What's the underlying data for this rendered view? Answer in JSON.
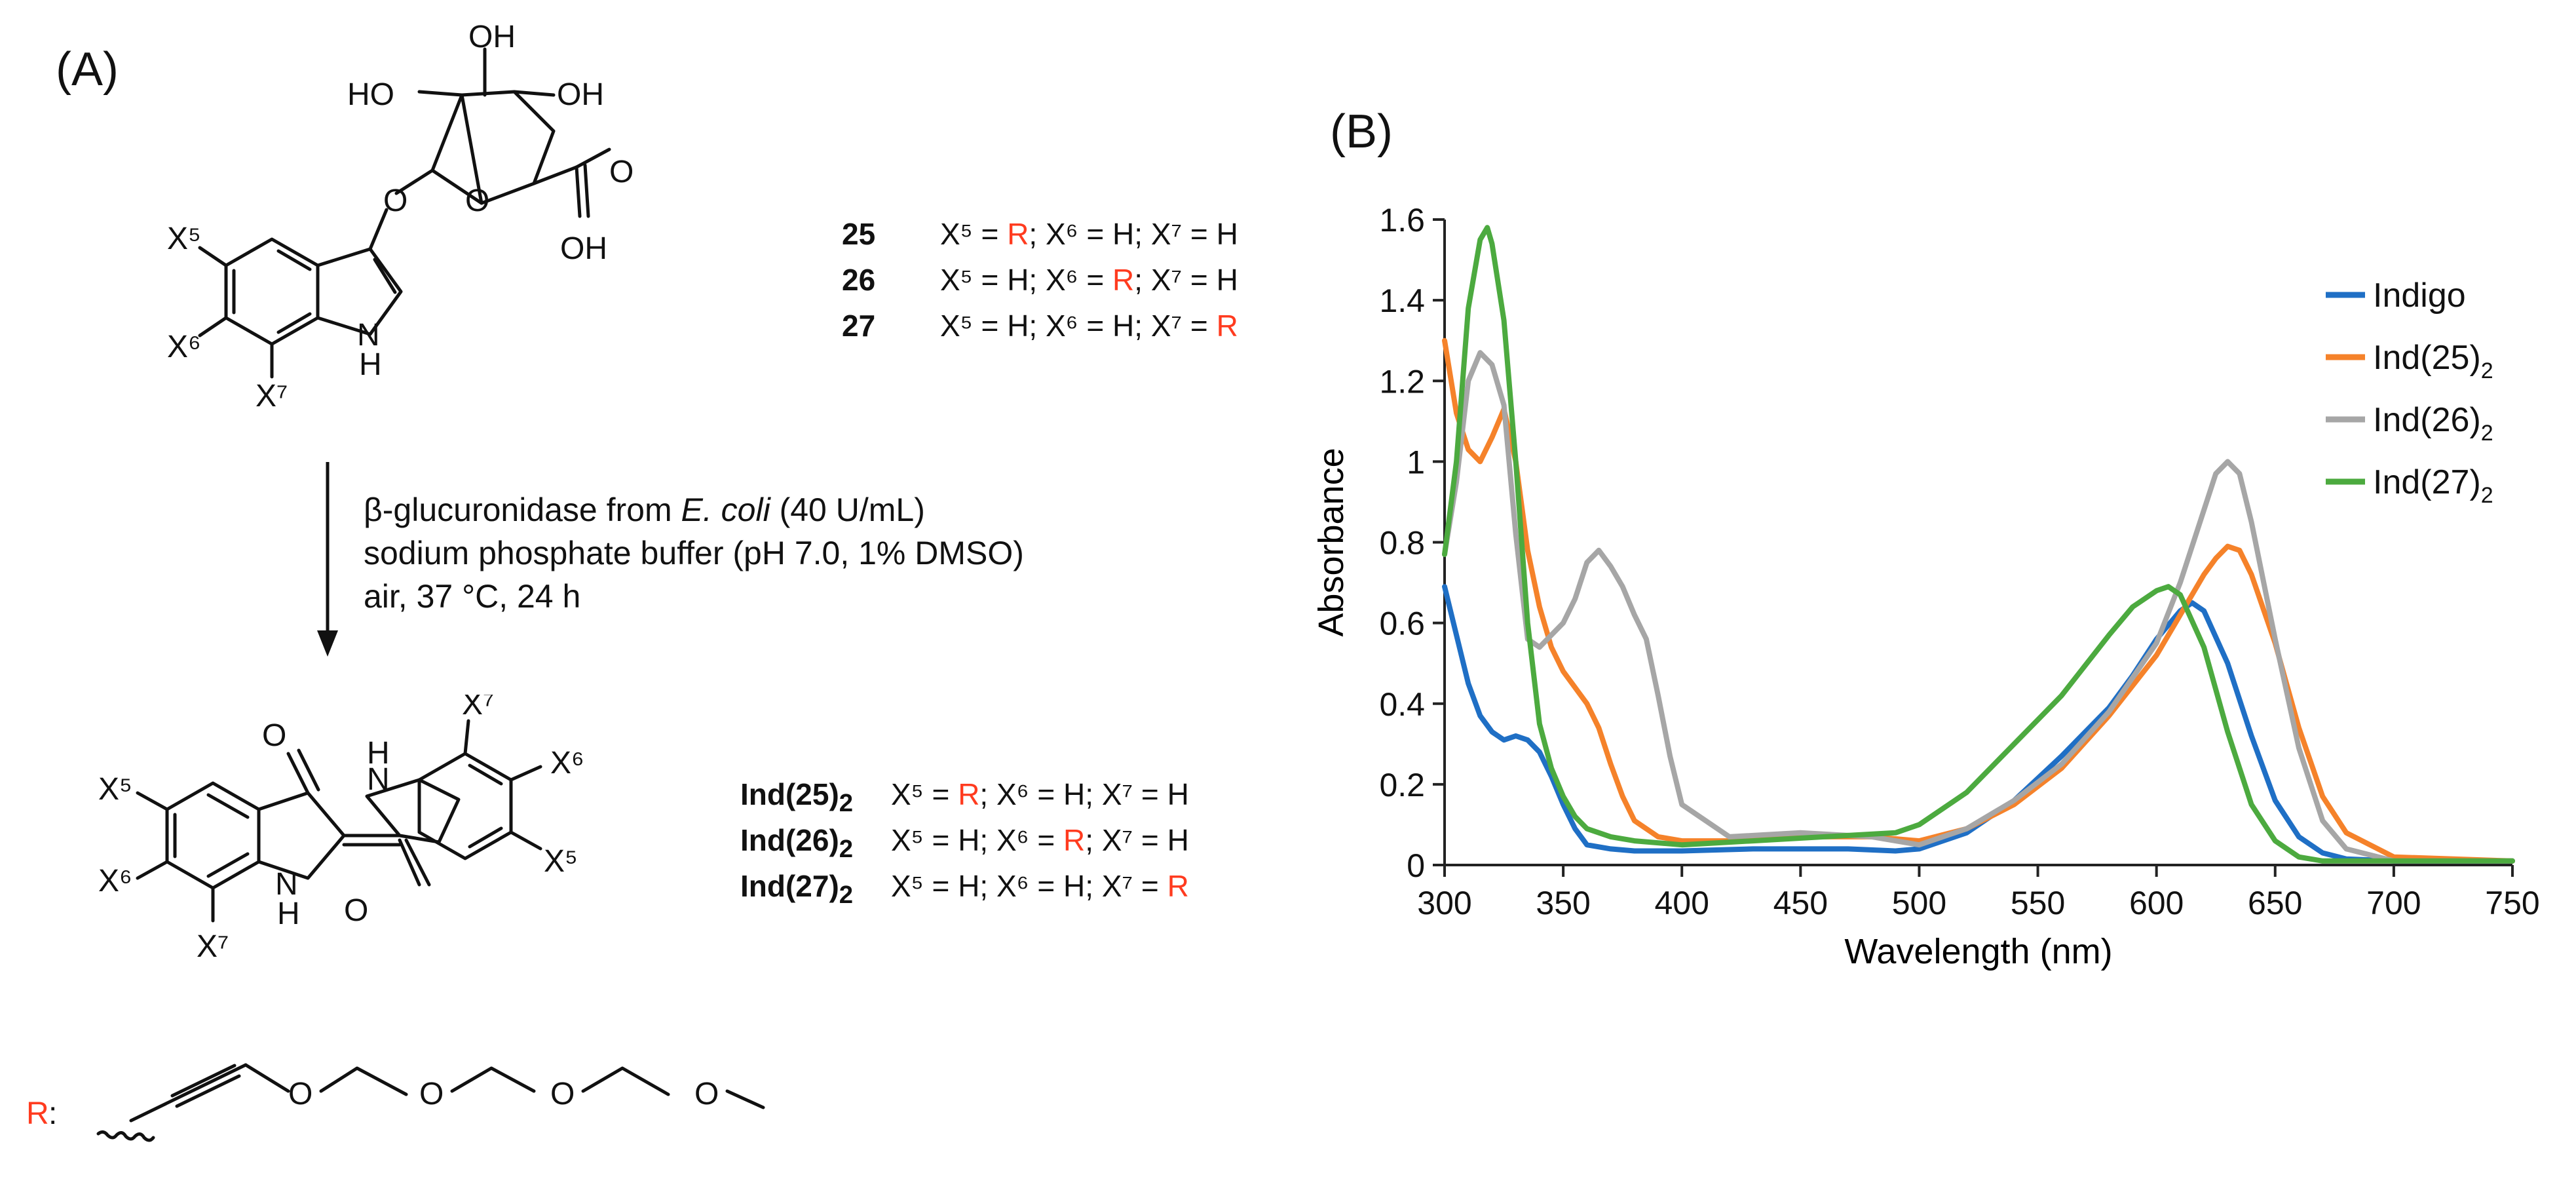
{
  "panel_a": {
    "label": "(A)",
    "substrate": {
      "oh_top": "OH",
      "ho_left": "HO",
      "oh_right": "OH",
      "oh_acid": "OH",
      "o_acid": "O",
      "o_ring": "O",
      "o_glyco": "O",
      "nh_n": "N",
      "nh_h": "H",
      "x5": "X⁵",
      "x6": "X⁶",
      "x7": "X⁷"
    },
    "substrate_variants": [
      {
        "id": "25",
        "x5": "X⁵ = ",
        "v5": "R",
        "x6": "; X⁶ = ",
        "v6": "H",
        "x7": "; X⁷ = ",
        "v7": "H"
      },
      {
        "id": "26",
        "x5": "X⁵ = ",
        "v5": "H",
        "x6": "; X⁶ = ",
        "v6": "R",
        "x7": "; X⁷ = ",
        "v7": "H"
      },
      {
        "id": "27",
        "x5": "X⁵ = ",
        "v5": "H",
        "x6": "; X⁶ = ",
        "v6": "H",
        "x7": "; X⁷ = ",
        "v7": "R"
      }
    ],
    "conditions": {
      "line1_pre": "β-glucuronidase from ",
      "line1_ital": "E. coli",
      "line1_post": " (40 U/mL)",
      "line2": "sodium phosphate buffer (pH 7.0, 1% DMSO)",
      "line3": "air, 37 °C, 24 h"
    },
    "product": {
      "o1": "O",
      "o2": "O",
      "n1": "N",
      "h1": "H",
      "n2": "N",
      "h2": "H",
      "x5a": "X⁵",
      "x6a": "X⁶",
      "x7a": "X⁷",
      "x5b": "X⁵",
      "x6b": "X⁶",
      "x7b": "X⁷"
    },
    "product_variants": [
      {
        "id": "Ind(25)",
        "sub": "2",
        "x5": "X⁵ = ",
        "v5": "R",
        "x6": "; X⁶ = ",
        "v6": "H",
        "x7": "; X⁷ = ",
        "v7": "H"
      },
      {
        "id": "Ind(26)",
        "sub": "2",
        "x5": "X⁵ = ",
        "v5": "H",
        "x6": "; X⁶ = ",
        "v6": "R",
        "x7": "; X⁷ = ",
        "v7": "H"
      },
      {
        "id": "Ind(27)",
        "sub": "2",
        "x5": "X⁵ = ",
        "v5": "H",
        "x6": "; X⁶ = ",
        "v6": "H",
        "x7": "; X⁷ = ",
        "v7": "R"
      }
    ],
    "r_group": {
      "label": "R",
      "colon": ":",
      "o1": "O",
      "o2": "O",
      "o3": "O",
      "o4": "O"
    }
  },
  "panel_b": {
    "label": "(B)"
  },
  "colors": {
    "red": "#ff3b1f",
    "indigo": "#1f6fc5",
    "ind25": "#f5822a",
    "ind26": "#a6a6a6",
    "ind27": "#4caa3f"
  },
  "chart_data": {
    "type": "line",
    "title": "",
    "xlabel": "Wavelength (nm)",
    "ylabel": "Absorbance",
    "xlim": [
      300,
      750
    ],
    "ylim": [
      0,
      1.6
    ],
    "xticks": [
      300,
      350,
      400,
      450,
      500,
      550,
      600,
      650,
      700,
      750
    ],
    "yticks": [
      "0",
      "0.2",
      "0.4",
      "0.6",
      "0.8",
      "1",
      "1.2",
      "1.4",
      "1.6"
    ],
    "legend_position": "top-right",
    "series": [
      {
        "name": "Indigo",
        "sub": "",
        "color": "#1f6fc5",
        "x": [
          300,
          305,
          310,
          315,
          320,
          325,
          330,
          335,
          340,
          345,
          350,
          355,
          360,
          370,
          380,
          400,
          430,
          450,
          470,
          490,
          500,
          520,
          540,
          560,
          580,
          590,
          600,
          610,
          615,
          620,
          630,
          640,
          650,
          660,
          670,
          680,
          700,
          750
        ],
        "y": [
          0.69,
          0.57,
          0.45,
          0.37,
          0.33,
          0.31,
          0.32,
          0.31,
          0.28,
          0.22,
          0.15,
          0.09,
          0.05,
          0.04,
          0.035,
          0.035,
          0.04,
          0.04,
          0.04,
          0.035,
          0.04,
          0.08,
          0.16,
          0.27,
          0.39,
          0.47,
          0.56,
          0.63,
          0.65,
          0.63,
          0.5,
          0.32,
          0.16,
          0.07,
          0.03,
          0.015,
          0.01,
          0.01
        ]
      },
      {
        "name": "Ind(25)",
        "sub": "2",
        "color": "#f5822a",
        "x": [
          300,
          305,
          310,
          315,
          320,
          325,
          330,
          335,
          340,
          345,
          350,
          355,
          360,
          365,
          370,
          375,
          380,
          390,
          400,
          420,
          450,
          480,
          500,
          520,
          540,
          560,
          580,
          600,
          610,
          620,
          625,
          630,
          635,
          640,
          650,
          660,
          670,
          680,
          700,
          750
        ],
        "y": [
          1.3,
          1.12,
          1.03,
          1.0,
          1.06,
          1.13,
          1.0,
          0.78,
          0.64,
          0.54,
          0.48,
          0.44,
          0.4,
          0.34,
          0.25,
          0.17,
          0.11,
          0.07,
          0.06,
          0.06,
          0.07,
          0.07,
          0.06,
          0.09,
          0.15,
          0.24,
          0.37,
          0.52,
          0.62,
          0.72,
          0.76,
          0.79,
          0.78,
          0.72,
          0.55,
          0.34,
          0.17,
          0.08,
          0.02,
          0.01
        ]
      },
      {
        "name": "Ind(26)",
        "sub": "2",
        "color": "#a6a6a6",
        "x": [
          300,
          305,
          310,
          315,
          320,
          325,
          330,
          335,
          340,
          345,
          350,
          355,
          360,
          365,
          370,
          375,
          380,
          385,
          390,
          395,
          400,
          420,
          450,
          480,
          500,
          520,
          540,
          560,
          580,
          600,
          610,
          620,
          625,
          630,
          635,
          640,
          650,
          660,
          670,
          680,
          700,
          750
        ],
        "y": [
          0.77,
          0.95,
          1.2,
          1.27,
          1.24,
          1.14,
          0.82,
          0.56,
          0.54,
          0.57,
          0.6,
          0.66,
          0.75,
          0.78,
          0.74,
          0.69,
          0.62,
          0.56,
          0.42,
          0.27,
          0.15,
          0.07,
          0.08,
          0.07,
          0.05,
          0.09,
          0.16,
          0.25,
          0.38,
          0.55,
          0.7,
          0.88,
          0.97,
          1.0,
          0.97,
          0.85,
          0.56,
          0.29,
          0.11,
          0.04,
          0.01,
          0.01
        ]
      },
      {
        "name": "Ind(27)",
        "sub": "2",
        "color": "#4caa3f",
        "x": [
          300,
          305,
          310,
          315,
          318,
          320,
          325,
          330,
          335,
          340,
          345,
          350,
          355,
          360,
          370,
          380,
          400,
          430,
          460,
          490,
          500,
          520,
          540,
          560,
          580,
          590,
          600,
          605,
          610,
          620,
          630,
          640,
          650,
          660,
          670,
          700,
          750
        ],
        "y": [
          0.77,
          1.0,
          1.38,
          1.55,
          1.58,
          1.54,
          1.35,
          1.0,
          0.6,
          0.35,
          0.24,
          0.17,
          0.12,
          0.09,
          0.07,
          0.06,
          0.05,
          0.06,
          0.07,
          0.08,
          0.1,
          0.18,
          0.3,
          0.42,
          0.57,
          0.64,
          0.68,
          0.69,
          0.67,
          0.54,
          0.33,
          0.15,
          0.06,
          0.02,
          0.01,
          0.01,
          0.01
        ]
      }
    ]
  }
}
